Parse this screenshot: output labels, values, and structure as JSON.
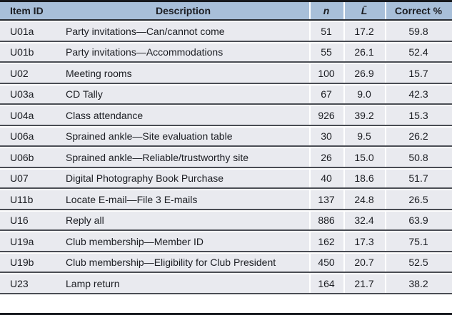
{
  "table": {
    "columns": [
      {
        "key": "item_id",
        "label": "Item ID"
      },
      {
        "key": "description",
        "label": "Description"
      },
      {
        "key": "n",
        "label": "n"
      },
      {
        "key": "l_bar",
        "label": "L̄"
      },
      {
        "key": "correct_pct",
        "label": "Correct %"
      }
    ],
    "rows": [
      [
        "U01a",
        "Party invitations—Can/cannot come",
        "51",
        "17.2",
        "59.8"
      ],
      [
        "U01b",
        "Party invitations—Accommodations",
        "55",
        "26.1",
        "52.4"
      ],
      [
        "U02",
        "Meeting rooms",
        "100",
        "26.9",
        "15.7"
      ],
      [
        "U03a",
        "CD Tally",
        "67",
        "9.0",
        "42.3"
      ],
      [
        "U04a",
        "Class attendance",
        "926",
        "39.2",
        "15.3"
      ],
      [
        "U06a",
        "Sprained ankle—Site evaluation table",
        "30",
        "9.5",
        "26.2"
      ],
      [
        "U06b",
        "Sprained ankle—Reliable/trustworthy site",
        "26",
        "15.0",
        "50.8"
      ],
      [
        "U07",
        "Digital Photography Book Purchase",
        "40",
        "18.6",
        "51.7"
      ],
      [
        "U11b",
        "Locate E-mail—File 3 E-mails",
        "137",
        "24.8",
        "26.5"
      ],
      [
        "U16",
        "Reply all",
        "886",
        "32.4",
        "63.9"
      ],
      [
        "U19a",
        "Club membership—Member ID",
        "162",
        "17.3",
        "75.1"
      ],
      [
        "U19b",
        "Club membership—Eligibility for Club President",
        "450",
        "20.7",
        "52.5"
      ],
      [
        "U23",
        "Lamp return",
        "164",
        "21.7",
        "38.2"
      ]
    ]
  },
  "colors": {
    "header_bg": "#a8bfd9",
    "row_bg": "#e9eaef",
    "row_rule": "#4a4d54",
    "header_rule": "#272a30",
    "frame": "#16181d",
    "text": "#1b1d22"
  }
}
